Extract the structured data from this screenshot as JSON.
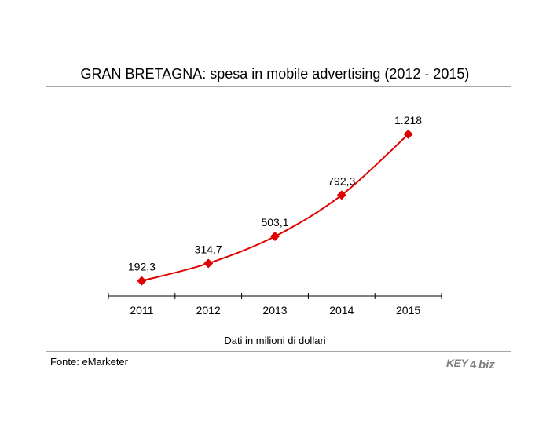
{
  "title": "GRAN BRETAGNA: spesa in mobile advertising (2012 - 2015)",
  "note": "Dati in milioni di dollari",
  "source": "Fonte: eMarketer",
  "logo_text": "KEY4biz",
  "colors": {
    "series": "#e00000",
    "axis": "#000000",
    "rule": "#a6a6a6",
    "logo": "#7f7f7f"
  },
  "chart_data": {
    "type": "line",
    "categories": [
      "2011",
      "2012",
      "2013",
      "2014",
      "2015"
    ],
    "series": [
      {
        "values": [
          192.3,
          314.7,
          503.1,
          792.3,
          1218
        ],
        "labels": [
          "192,3",
          "314,7",
          "503,1",
          "792,3",
          "1.218"
        ]
      }
    ],
    "title": "GRAN BRETAGNA: spesa in mobile advertising (2012 - 2015)",
    "xlabel": "",
    "ylabel": "",
    "grid": false,
    "legend": "none",
    "marker": "diamond"
  }
}
